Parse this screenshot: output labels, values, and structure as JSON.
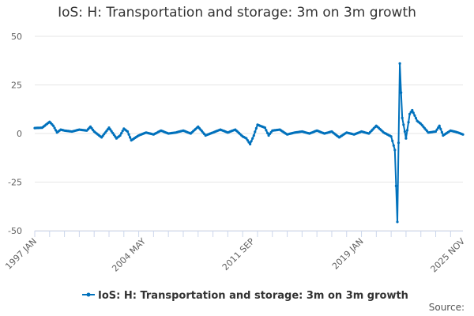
{
  "chart_data": {
    "type": "line",
    "title": "IoS: H: Transportation and storage: 3m on 3m growth",
    "xlabel": "",
    "ylabel": "",
    "ylim": [
      -50,
      50
    ],
    "yticks": [
      "50",
      "25",
      "0",
      "-25",
      "-50"
    ],
    "xtick_labels": [
      "1997 JAN",
      "2004 MAY",
      "2011 SEP",
      "2019 JAN",
      "2025 NOV"
    ],
    "x_range": [
      "1997 JAN",
      "2025 NOV"
    ],
    "grid": "horizontal",
    "legend": "bottom-center",
    "series_color": "#0071bc",
    "credit": "Source:",
    "series": [
      {
        "name": "IoS: H: Transportation and storage: 3m on 3m growth",
        "points": [
          [
            "1997-01",
            2.8
          ],
          [
            "1997-07",
            3.0
          ],
          [
            "1997-10",
            4.5
          ],
          [
            "1998-01",
            6.0
          ],
          [
            "1998-04",
            4.0
          ],
          [
            "1998-07",
            0.5
          ],
          [
            "1998-10",
            2.0
          ],
          [
            "1999-01",
            1.5
          ],
          [
            "1999-07",
            1.0
          ],
          [
            "2000-01",
            2.0
          ],
          [
            "2000-07",
            1.5
          ],
          [
            "2000-10",
            3.5
          ],
          [
            "2001-01",
            1.0
          ],
          [
            "2001-07",
            -2.0
          ],
          [
            "2001-10",
            0.5
          ],
          [
            "2002-01",
            3.0
          ],
          [
            "2002-07",
            -2.5
          ],
          [
            "2002-10",
            -1.0
          ],
          [
            "2003-01",
            2.5
          ],
          [
            "2003-04",
            1.0
          ],
          [
            "2003-07",
            -3.5
          ],
          [
            "2004-01",
            -1.0
          ],
          [
            "2004-07",
            0.5
          ],
          [
            "2005-01",
            -0.5
          ],
          [
            "2005-07",
            1.5
          ],
          [
            "2006-01",
            0.0
          ],
          [
            "2006-07",
            0.5
          ],
          [
            "2007-01",
            1.5
          ],
          [
            "2007-07",
            0.0
          ],
          [
            "2008-01",
            3.5
          ],
          [
            "2008-07",
            -1.0
          ],
          [
            "2009-01",
            0.5
          ],
          [
            "2009-07",
            2.0
          ],
          [
            "2010-01",
            0.5
          ],
          [
            "2010-07",
            2.0
          ],
          [
            "2011-01",
            -1.5
          ],
          [
            "2011-04",
            -2.5
          ],
          [
            "2011-07",
            -5.5
          ],
          [
            "2011-10",
            -1.0
          ],
          [
            "2012-01",
            4.5
          ],
          [
            "2012-07",
            3.0
          ],
          [
            "2012-10",
            -1.0
          ],
          [
            "2013-01",
            1.5
          ],
          [
            "2013-07",
            2.0
          ],
          [
            "2014-01",
            -0.5
          ],
          [
            "2014-07",
            0.5
          ],
          [
            "2015-01",
            1.0
          ],
          [
            "2015-07",
            0.0
          ],
          [
            "2016-01",
            1.5
          ],
          [
            "2016-07",
            0.0
          ],
          [
            "2017-01",
            1.0
          ],
          [
            "2017-07",
            -2.0
          ],
          [
            "2018-01",
            0.5
          ],
          [
            "2018-07",
            -0.5
          ],
          [
            "2019-01",
            1.0
          ],
          [
            "2019-07",
            0.0
          ],
          [
            "2020-01",
            4.0
          ],
          [
            "2020-07",
            0.5
          ],
          [
            "2021-01",
            -1.5
          ],
          [
            "2021-04",
            -8.5
          ],
          [
            "2021-06",
            -45.5
          ],
          [
            "2021-08",
            36.0
          ],
          [
            "2021-09",
            21.0
          ],
          [
            "2021-10",
            8.0
          ],
          [
            "2022-01",
            -2.5
          ],
          [
            "2022-04",
            10.0
          ],
          [
            "2022-06",
            12.0
          ],
          [
            "2022-10",
            6.5
          ],
          [
            "2023-01",
            5.0
          ],
          [
            "2023-07",
            0.5
          ],
          [
            "2024-01",
            1.0
          ],
          [
            "2024-04",
            4.0
          ],
          [
            "2024-07",
            -1.0
          ],
          [
            "2025-01",
            1.5
          ],
          [
            "2025-07",
            0.5
          ],
          [
            "2025-11",
            -0.5
          ]
        ]
      }
    ]
  }
}
